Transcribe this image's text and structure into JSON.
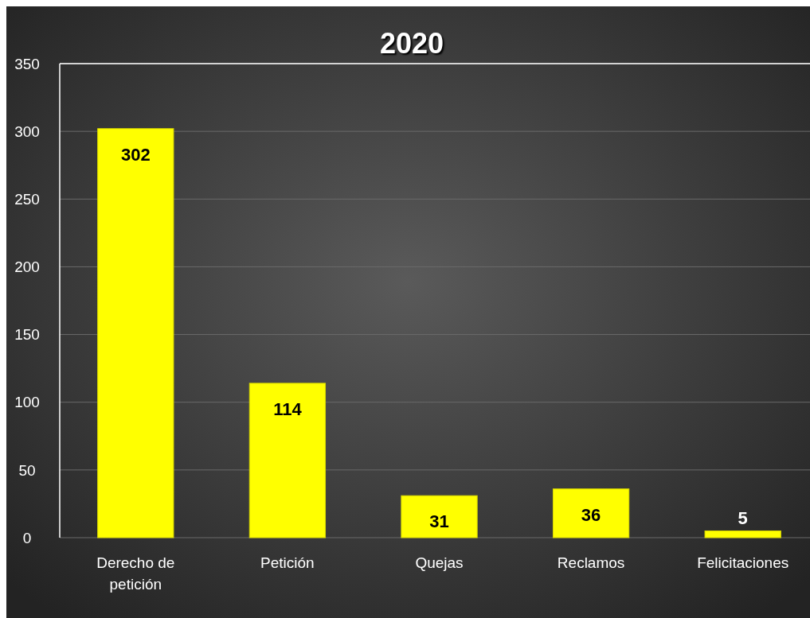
{
  "chart_data": {
    "type": "bar",
    "title": "2020",
    "categories": [
      "Derecho de petición",
      "Petición",
      "Quejas",
      "Reclamos",
      "Felicitaciones"
    ],
    "values": [
      302,
      114,
      31,
      36,
      5
    ],
    "color": "#ffff00",
    "ylim": [
      0,
      350
    ],
    "yticks": [
      0,
      50,
      100,
      150,
      200,
      250,
      300,
      350
    ],
    "grid": "y",
    "data_labels": true
  }
}
